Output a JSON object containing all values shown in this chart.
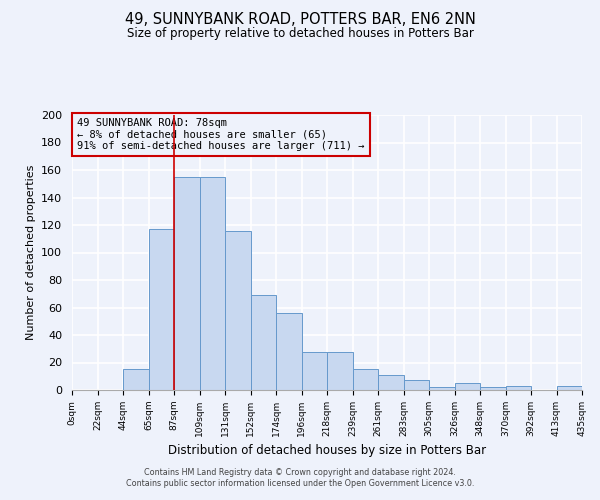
{
  "title": "49, SUNNYBANK ROAD, POTTERS BAR, EN6 2NN",
  "subtitle": "Size of property relative to detached houses in Potters Bar",
  "xlabel": "Distribution of detached houses by size in Potters Bar",
  "ylabel": "Number of detached properties",
  "footer_line1": "Contains HM Land Registry data © Crown copyright and database right 2024.",
  "footer_line2": "Contains public sector information licensed under the Open Government Licence v3.0.",
  "bin_labels": [
    "0sqm",
    "22sqm",
    "44sqm",
    "65sqm",
    "87sqm",
    "109sqm",
    "131sqm",
    "152sqm",
    "174sqm",
    "196sqm",
    "218sqm",
    "239sqm",
    "261sqm",
    "283sqm",
    "305sqm",
    "326sqm",
    "348sqm",
    "370sqm",
    "392sqm",
    "413sqm",
    "435sqm"
  ],
  "bar_heights": [
    0,
    0,
    0,
    15,
    117,
    155,
    155,
    116,
    69,
    56,
    28,
    28,
    15,
    11,
    7,
    2,
    5,
    2,
    3,
    0,
    3
  ],
  "bar_color": "#c8d8f0",
  "bar_edge_color": "#6699cc",
  "annotation_box_title": "49 SUNNYBANK ROAD: 78sqm",
  "annotation_line1": "← 8% of detached houses are smaller (65)",
  "annotation_line2": "91% of semi-detached houses are larger (711) →",
  "annotation_box_edge": "#cc0000",
  "property_line_x": 4,
  "property_line_color": "#cc0000",
  "ylim": [
    0,
    200
  ],
  "yticks": [
    0,
    20,
    40,
    60,
    80,
    100,
    120,
    140,
    160,
    180,
    200
  ],
  "bg_color": "#eef2fb"
}
